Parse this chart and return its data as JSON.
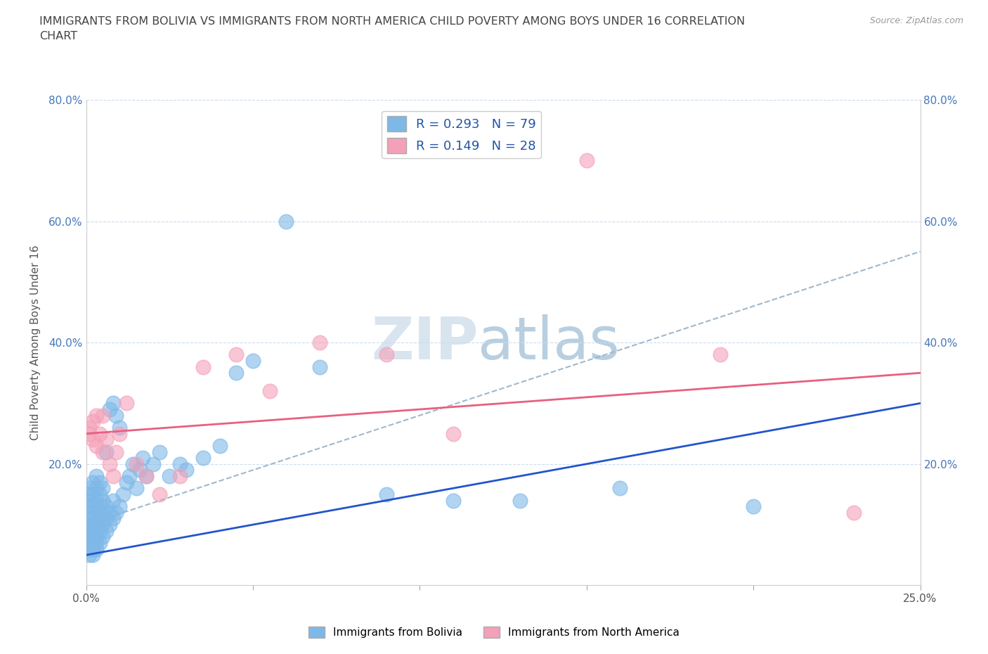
{
  "title": "IMMIGRANTS FROM BOLIVIA VS IMMIGRANTS FROM NORTH AMERICA CHILD POVERTY AMONG BOYS UNDER 16 CORRELATION\nCHART",
  "source": "Source: ZipAtlas.com",
  "ylabel": "Child Poverty Among Boys Under 16",
  "xlim": [
    0.0,
    0.25
  ],
  "ylim": [
    0.0,
    0.8
  ],
  "xticks": [
    0.0,
    0.05,
    0.1,
    0.15,
    0.2,
    0.25
  ],
  "yticks": [
    0.0,
    0.2,
    0.4,
    0.6,
    0.8
  ],
  "xtick_labels": [
    "0.0%",
    "",
    "",
    "",
    "",
    "25.0%"
  ],
  "ytick_labels": [
    "",
    "20.0%",
    "40.0%",
    "60.0%",
    "80.0%"
  ],
  "bolivia_color": "#7eb8e8",
  "north_america_color": "#f4a0b8",
  "bolivia_line_color": "#2255cc",
  "north_america_line_color": "#e86080",
  "dashed_line_color": "#a0b8cc",
  "bolivia_R": 0.293,
  "bolivia_N": 79,
  "north_america_R": 0.149,
  "north_america_N": 28,
  "legend_R_color": "#2255aa",
  "watermark": "ZIPatlas",
  "watermark_color_zip": "#b0c8e0",
  "watermark_color_atlas": "#80a0c0",
  "bolivia_trend": [
    0.05,
    0.3
  ],
  "north_america_trend": [
    0.25,
    0.35
  ],
  "dashed_trend": [
    0.1,
    0.55
  ],
  "bolivia_x": [
    0.001,
    0.001,
    0.001,
    0.001,
    0.001,
    0.001,
    0.001,
    0.001,
    0.001,
    0.001,
    0.001,
    0.001,
    0.002,
    0.002,
    0.002,
    0.002,
    0.002,
    0.002,
    0.002,
    0.002,
    0.002,
    0.002,
    0.003,
    0.003,
    0.003,
    0.003,
    0.003,
    0.003,
    0.003,
    0.003,
    0.004,
    0.004,
    0.004,
    0.004,
    0.004,
    0.004,
    0.005,
    0.005,
    0.005,
    0.005,
    0.005,
    0.006,
    0.006,
    0.006,
    0.006,
    0.007,
    0.007,
    0.007,
    0.008,
    0.008,
    0.008,
    0.009,
    0.009,
    0.01,
    0.01,
    0.011,
    0.012,
    0.013,
    0.014,
    0.015,
    0.016,
    0.017,
    0.018,
    0.02,
    0.022,
    0.025,
    0.028,
    0.03,
    0.035,
    0.04,
    0.045,
    0.05,
    0.06,
    0.07,
    0.09,
    0.11,
    0.13,
    0.16,
    0.2
  ],
  "bolivia_y": [
    0.05,
    0.07,
    0.09,
    0.1,
    0.11,
    0.12,
    0.13,
    0.14,
    0.15,
    0.06,
    0.08,
    0.16,
    0.05,
    0.07,
    0.09,
    0.11,
    0.13,
    0.15,
    0.17,
    0.06,
    0.08,
    0.1,
    0.06,
    0.08,
    0.1,
    0.12,
    0.14,
    0.16,
    0.18,
    0.07,
    0.07,
    0.09,
    0.11,
    0.13,
    0.15,
    0.17,
    0.08,
    0.1,
    0.12,
    0.14,
    0.16,
    0.09,
    0.11,
    0.13,
    0.22,
    0.1,
    0.12,
    0.29,
    0.11,
    0.14,
    0.3,
    0.12,
    0.28,
    0.13,
    0.26,
    0.15,
    0.17,
    0.18,
    0.2,
    0.16,
    0.19,
    0.21,
    0.18,
    0.2,
    0.22,
    0.18,
    0.2,
    0.19,
    0.21,
    0.23,
    0.35,
    0.37,
    0.6,
    0.36,
    0.15,
    0.14,
    0.14,
    0.16,
    0.13
  ],
  "north_america_x": [
    0.001,
    0.001,
    0.002,
    0.002,
    0.003,
    0.003,
    0.004,
    0.005,
    0.005,
    0.006,
    0.007,
    0.008,
    0.009,
    0.01,
    0.012,
    0.015,
    0.018,
    0.022,
    0.028,
    0.035,
    0.045,
    0.055,
    0.07,
    0.09,
    0.11,
    0.15,
    0.19,
    0.23
  ],
  "north_america_y": [
    0.25,
    0.26,
    0.24,
    0.27,
    0.23,
    0.28,
    0.25,
    0.22,
    0.28,
    0.24,
    0.2,
    0.18,
    0.22,
    0.25,
    0.3,
    0.2,
    0.18,
    0.15,
    0.18,
    0.36,
    0.38,
    0.32,
    0.4,
    0.38,
    0.25,
    0.7,
    0.38,
    0.12
  ]
}
